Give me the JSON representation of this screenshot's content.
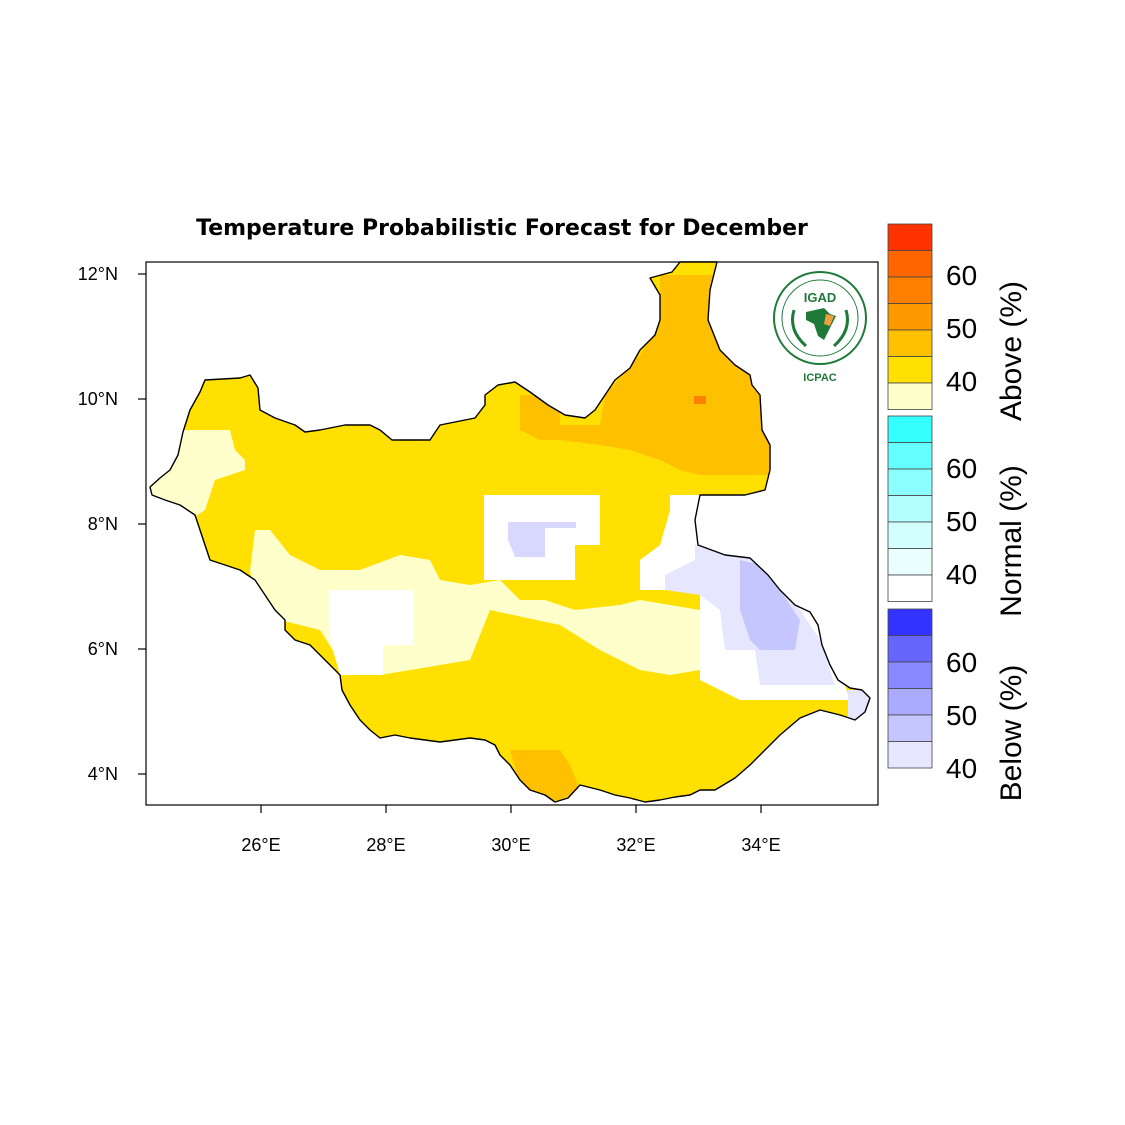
{
  "title": "Temperature Probabilistic Forecast for December",
  "logo": {
    "top_text": "IGAD",
    "bottom_text": "ICPAC",
    "ring_text": "INTERGOVERNMENTAL AUTHORITY ON DEVELOPMENT"
  },
  "axes": {
    "lon_ticks": [
      "26°E",
      "28°E",
      "30°E",
      "32°E",
      "34°E"
    ],
    "lat_ticks": [
      "12°N",
      "10°N",
      "8°N",
      "6°N",
      "4°N"
    ],
    "lon_range": [
      24.2,
      35.9
    ],
    "lat_range": [
      3.5,
      12.2
    ]
  },
  "colorbars": [
    {
      "title": "Above (%)",
      "labels": [
        "60",
        "50",
        "40"
      ],
      "colors": [
        "#ff3300",
        "#ff6600",
        "#ff8000",
        "#ff9900",
        "#ffc000",
        "#ffe000",
        "#ffffcc"
      ]
    },
    {
      "title": "Normal (%)",
      "labels": [
        "60",
        "50",
        "40"
      ],
      "colors": [
        "#33ffff",
        "#66ffff",
        "#8cffff",
        "#b3ffff",
        "#d4ffff",
        "#eafffd",
        "#ffffff"
      ]
    },
    {
      "title": "Below (%)",
      "labels": [
        "60",
        "50",
        "40"
      ],
      "colors": [
        "#3333ff",
        "#6666ff",
        "#8888ff",
        "#aaaaff",
        "#c6c6ff",
        "#e6e6ff"
      ]
    }
  ],
  "chart_data": {
    "type": "heatmap",
    "title": "Temperature Probabilistic Forecast for December",
    "xlabel": "",
    "ylabel": "",
    "xlim": [
      24.2,
      35.9
    ],
    "ylim": [
      3.5,
      12.2
    ],
    "regions": [
      {
        "category": "Above",
        "prob": 40,
        "color": "#ffe000",
        "desc": "most of country"
      },
      {
        "category": "Above",
        "prob": 45,
        "color": "#ffc000",
        "desc": "north-east (Upper Nile)"
      },
      {
        "category": "Above",
        "prob": 55,
        "color": "#ff8000",
        "desc": "spot near 33E 10N"
      },
      {
        "category": "Above",
        "prob": 35,
        "color": "#ffffcc",
        "desc": "west and central belt"
      },
      {
        "category": "Normal",
        "prob": 35,
        "color": "#ffffff",
        "desc": "central and eastern pockets"
      },
      {
        "category": "Below",
        "prob": 40,
        "color": "#e6e6ff",
        "desc": "east (Jonglei/Pibor)"
      },
      {
        "category": "Below",
        "prob": 45,
        "color": "#c6c6ff",
        "desc": "east near 34E 7N"
      }
    ]
  }
}
